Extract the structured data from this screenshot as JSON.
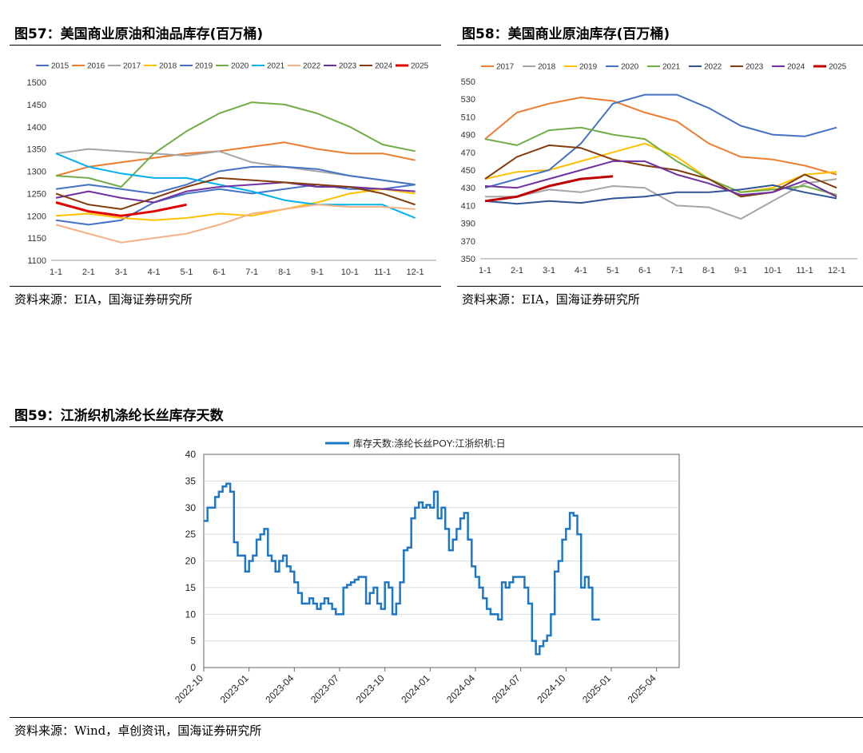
{
  "figures": [
    {
      "id": "fig57",
      "title": "图57：美国商业原油和油品库存(百万桶)",
      "source": "资料来源：EIA，国海证券研究所"
    },
    {
      "id": "fig58",
      "title": "图58：美国商业原油库存(百万桶)",
      "source": "资料来源：EIA，国海证券研究所"
    },
    {
      "id": "fig59",
      "title": "图59：江浙织机涤纶长丝库存天数",
      "source": "资料来源：Wind，卓创资讯，国海证券研究所"
    }
  ],
  "chart_data": [
    {
      "type": "line",
      "title": "美国商业原油和油品库存(百万桶)",
      "x_ticks": [
        "1-1",
        "2-1",
        "3-1",
        "4-1",
        "5-1",
        "6-1",
        "7-1",
        "8-1",
        "9-1",
        "10-1",
        "11-1",
        "12-1"
      ],
      "ylim": [
        1100,
        1500
      ],
      "y_ticks": [
        1100,
        1150,
        1200,
        1250,
        1300,
        1350,
        1400,
        1450,
        1500
      ],
      "legend": "top",
      "grid": false,
      "series": [
        {
          "name": "2015",
          "color": "#4472C4",
          "values": [
            1190,
            1180,
            1190,
            1230,
            1250,
            1260,
            1250,
            1260,
            1270,
            1260,
            1260,
            1270
          ]
        },
        {
          "name": "2016",
          "color": "#ED7D31",
          "values": [
            1290,
            1310,
            1320,
            1330,
            1340,
            1345,
            1355,
            1365,
            1350,
            1340,
            1340,
            1325
          ]
        },
        {
          "name": "2017",
          "color": "#A5A5A5",
          "values": [
            1340,
            1350,
            1345,
            1340,
            1335,
            1345,
            1320,
            1310,
            1300,
            1290,
            1280,
            1270
          ]
        },
        {
          "name": "2018",
          "color": "#FFC000",
          "values": [
            1200,
            1205,
            1195,
            1190,
            1195,
            1205,
            1200,
            1215,
            1230,
            1250,
            1260,
            1250
          ]
        },
        {
          "name": "2019",
          "color": "#4472C4",
          "values": [
            1260,
            1270,
            1260,
            1250,
            1270,
            1300,
            1310,
            1310,
            1305,
            1290,
            1280,
            1270
          ]
        },
        {
          "name": "2020",
          "color": "#70AD47",
          "values": [
            1290,
            1285,
            1265,
            1340,
            1390,
            1430,
            1455,
            1450,
            1430,
            1400,
            1360,
            1345
          ]
        },
        {
          "name": "2021",
          "color": "#00B0F0",
          "values": [
            1340,
            1310,
            1295,
            1285,
            1285,
            1270,
            1255,
            1235,
            1225,
            1225,
            1225,
            1195
          ]
        },
        {
          "name": "2022",
          "color": "#F4B183",
          "values": [
            1180,
            1160,
            1140,
            1150,
            1160,
            1180,
            1205,
            1215,
            1225,
            1220,
            1220,
            1215
          ]
        },
        {
          "name": "2023",
          "color": "#7030A0",
          "values": [
            1240,
            1255,
            1240,
            1230,
            1255,
            1265,
            1270,
            1275,
            1265,
            1265,
            1260,
            1255
          ]
        },
        {
          "name": "2024",
          "color": "#843C0C",
          "values": [
            1250,
            1225,
            1215,
            1240,
            1265,
            1285,
            1280,
            1275,
            1270,
            1265,
            1250,
            1225
          ]
        },
        {
          "name": "2025",
          "color": "#E00000",
          "values": [
            1230,
            1210,
            1200,
            1210,
            1225
          ]
        }
      ]
    },
    {
      "type": "line",
      "title": "美国商业原油库存(百万桶)",
      "x_ticks": [
        "1-1",
        "2-1",
        "3-1",
        "4-1",
        "5-1",
        "6-1",
        "7-1",
        "8-1",
        "9-1",
        "10-1",
        "11-1",
        "12-1"
      ],
      "ylim": [
        350,
        550
      ],
      "y_ticks": [
        350,
        370,
        390,
        410,
        430,
        450,
        470,
        490,
        510,
        530,
        550
      ],
      "legend": "top",
      "grid": false,
      "series": [
        {
          "name": "2017",
          "color": "#ED7D31",
          "values": [
            485,
            515,
            525,
            532,
            528,
            515,
            505,
            480,
            465,
            462,
            455,
            445
          ]
        },
        {
          "name": "2018",
          "color": "#A5A5A5",
          "values": [
            420,
            420,
            428,
            425,
            432,
            430,
            410,
            408,
            395,
            415,
            435,
            440
          ]
        },
        {
          "name": "2019",
          "color": "#FFC000",
          "values": [
            440,
            448,
            450,
            460,
            470,
            480,
            465,
            440,
            425,
            430,
            445,
            448
          ]
        },
        {
          "name": "2020",
          "color": "#4472C4",
          "values": [
            430,
            440,
            450,
            480,
            525,
            535,
            535,
            520,
            500,
            490,
            488,
            498
          ]
        },
        {
          "name": "2021",
          "color": "#70AD47",
          "values": [
            485,
            478,
            495,
            498,
            490,
            485,
            460,
            440,
            425,
            428,
            432,
            422
          ]
        },
        {
          "name": "2022",
          "color": "#2F5597",
          "values": [
            415,
            412,
            415,
            413,
            418,
            420,
            425,
            425,
            428,
            433,
            425,
            418
          ]
        },
        {
          "name": "2023",
          "color": "#843C0C",
          "values": [
            440,
            465,
            478,
            475,
            462,
            455,
            450,
            440,
            420,
            425,
            445,
            430
          ]
        },
        {
          "name": "2024",
          "color": "#7030A0",
          "values": [
            432,
            430,
            440,
            450,
            460,
            460,
            445,
            435,
            422,
            425,
            438,
            420
          ]
        },
        {
          "name": "2025",
          "color": "#C00000",
          "values": [
            415,
            420,
            432,
            440,
            443
          ]
        }
      ]
    },
    {
      "type": "line",
      "title": "",
      "legend": "top",
      "grid": true,
      "x_ticks": [
        "2022-10",
        "2023-01",
        "2023-04",
        "2023-07",
        "2023-10",
        "2024-01",
        "2024-04",
        "2024-07",
        "2024-10",
        "2025-01",
        "2025-04"
      ],
      "ylim": [
        0,
        40
      ],
      "y_ticks": [
        0,
        5,
        10,
        15,
        20,
        25,
        30,
        35,
        40
      ],
      "series": [
        {
          "name": "库存天数:涤纶长丝POY:江浙织机:日",
          "color": "#1F77C4",
          "step_months": 0.25,
          "values": [
            27.5,
            30,
            30,
            32,
            33,
            34,
            34.5,
            33,
            23.5,
            21,
            21,
            18,
            20,
            21,
            24,
            25,
            26,
            21,
            20,
            18,
            20,
            21,
            19,
            18,
            16,
            14,
            12,
            12,
            13,
            12,
            11,
            12,
            13,
            12,
            11,
            10,
            10,
            15,
            15.5,
            16,
            16.5,
            17,
            17,
            12,
            14,
            15,
            12,
            11,
            16,
            15,
            10,
            12,
            16,
            22,
            22.5,
            28,
            30,
            31,
            30,
            30.5,
            30,
            33,
            28,
            30,
            26,
            22,
            24,
            26,
            28,
            29,
            24,
            19,
            17,
            15,
            13,
            11,
            10,
            10,
            9,
            16,
            15,
            16,
            17,
            17,
            17,
            15,
            12,
            5,
            2.5,
            4,
            5,
            6,
            10,
            18,
            20,
            24,
            26,
            29,
            28.5,
            25,
            15,
            17,
            15,
            9,
            9
          ]
        }
      ]
    }
  ]
}
